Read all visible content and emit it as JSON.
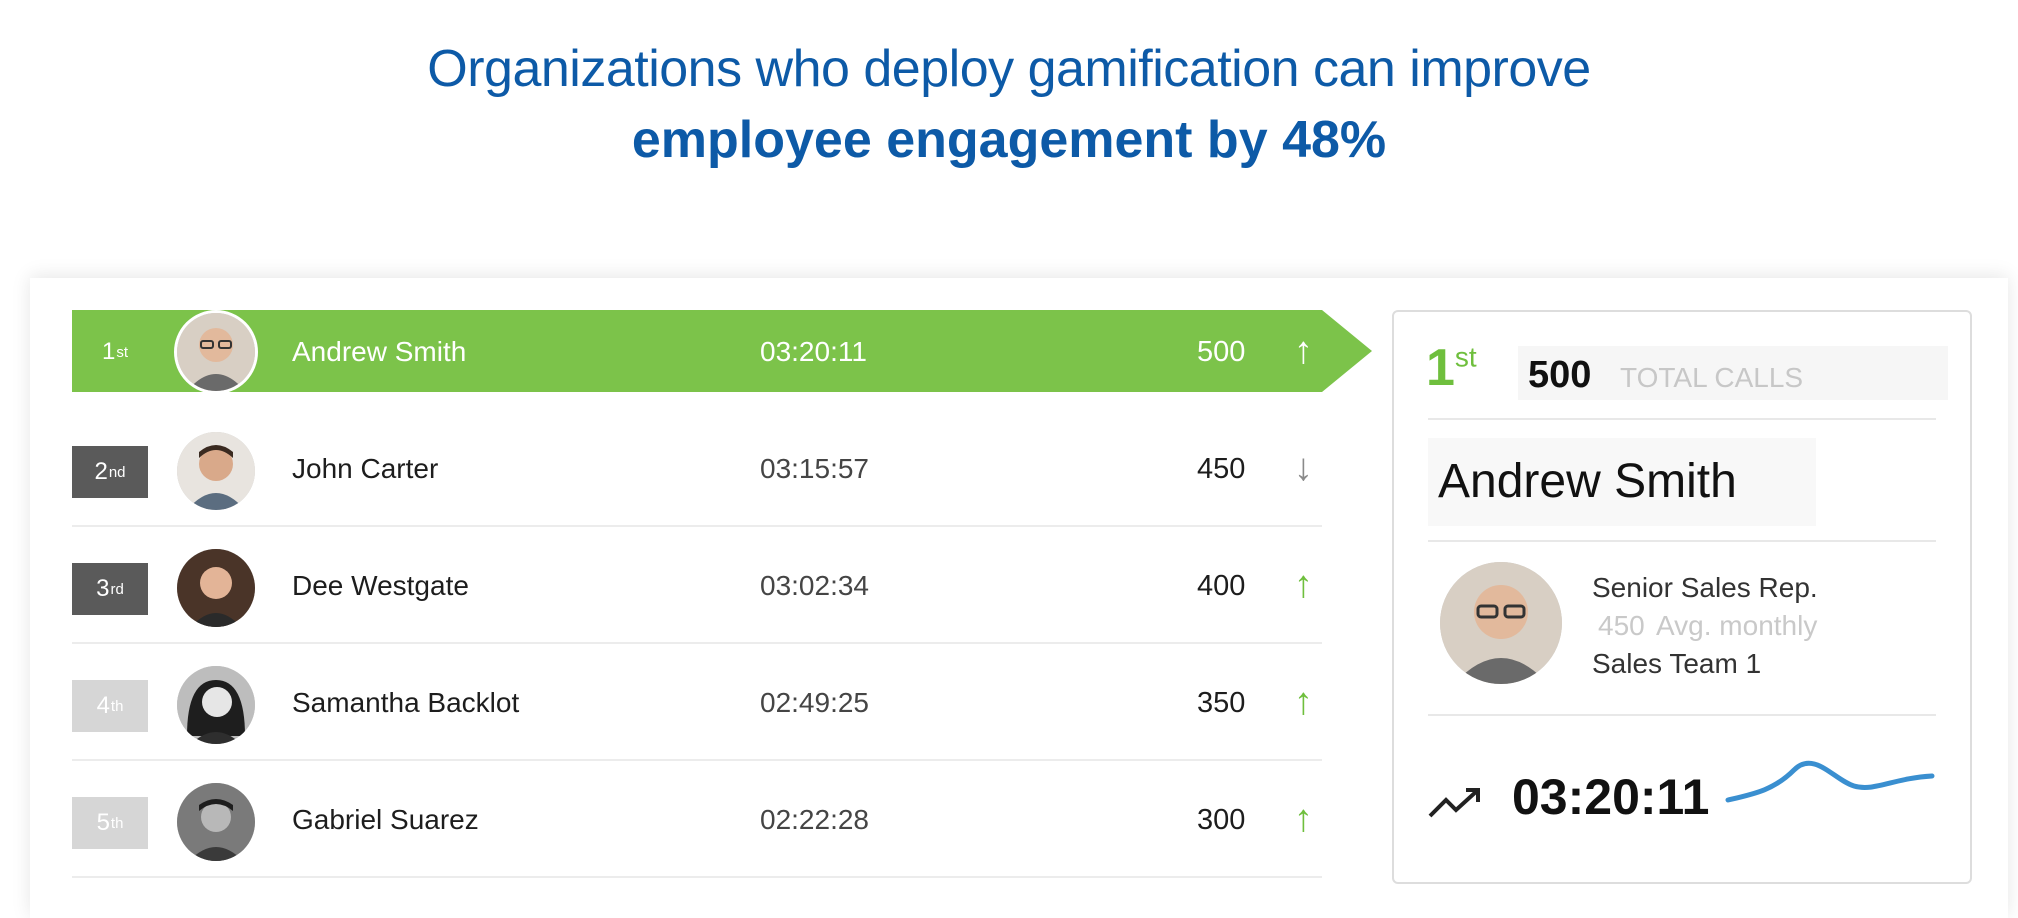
{
  "headline": {
    "line1": "Organizations who deploy gamification can improve",
    "line2": "employee engagement by 48%"
  },
  "leaderboard": {
    "rows": [
      {
        "rank_num": "1",
        "rank_suffix": "st",
        "name": "Andrew Smith",
        "time": "03:20:11",
        "score": "500",
        "trend": "up"
      },
      {
        "rank_num": "2",
        "rank_suffix": "nd",
        "name": "John Carter",
        "time": "03:15:57",
        "score": "450",
        "trend": "down"
      },
      {
        "rank_num": "3",
        "rank_suffix": "rd",
        "name": "Dee Westgate",
        "time": "03:02:34",
        "score": "400",
        "trend": "up"
      },
      {
        "rank_num": "4",
        "rank_suffix": "th",
        "name": "Samantha Backlot",
        "time": "02:49:25",
        "score": "350",
        "trend": "up"
      },
      {
        "rank_num": "5",
        "rank_suffix": "th",
        "name": "Gabriel Suarez",
        "time": "02:22:28",
        "score": "300",
        "trend": "up"
      }
    ]
  },
  "detail": {
    "rank_num": "1",
    "rank_suffix": "st",
    "calls": "500",
    "calls_label": "TOTAL CALLS",
    "name": "Andrew Smith",
    "title": "Senior Sales Rep.",
    "avg_value": "450",
    "avg_label": "Avg. monthly",
    "team": "Sales Team 1",
    "time": "03:20:11",
    "trend_icon": "trending-up-icon"
  },
  "colors": {
    "headline": "#0d5aa7",
    "leader_bar": "#7cc34a",
    "up_arrow": "#6fbf3d",
    "down_arrow": "#8a8a8a",
    "sparkline": "#3a8fd0"
  },
  "icons": {
    "up": "arrow-up-icon",
    "down": "arrow-down-icon"
  }
}
